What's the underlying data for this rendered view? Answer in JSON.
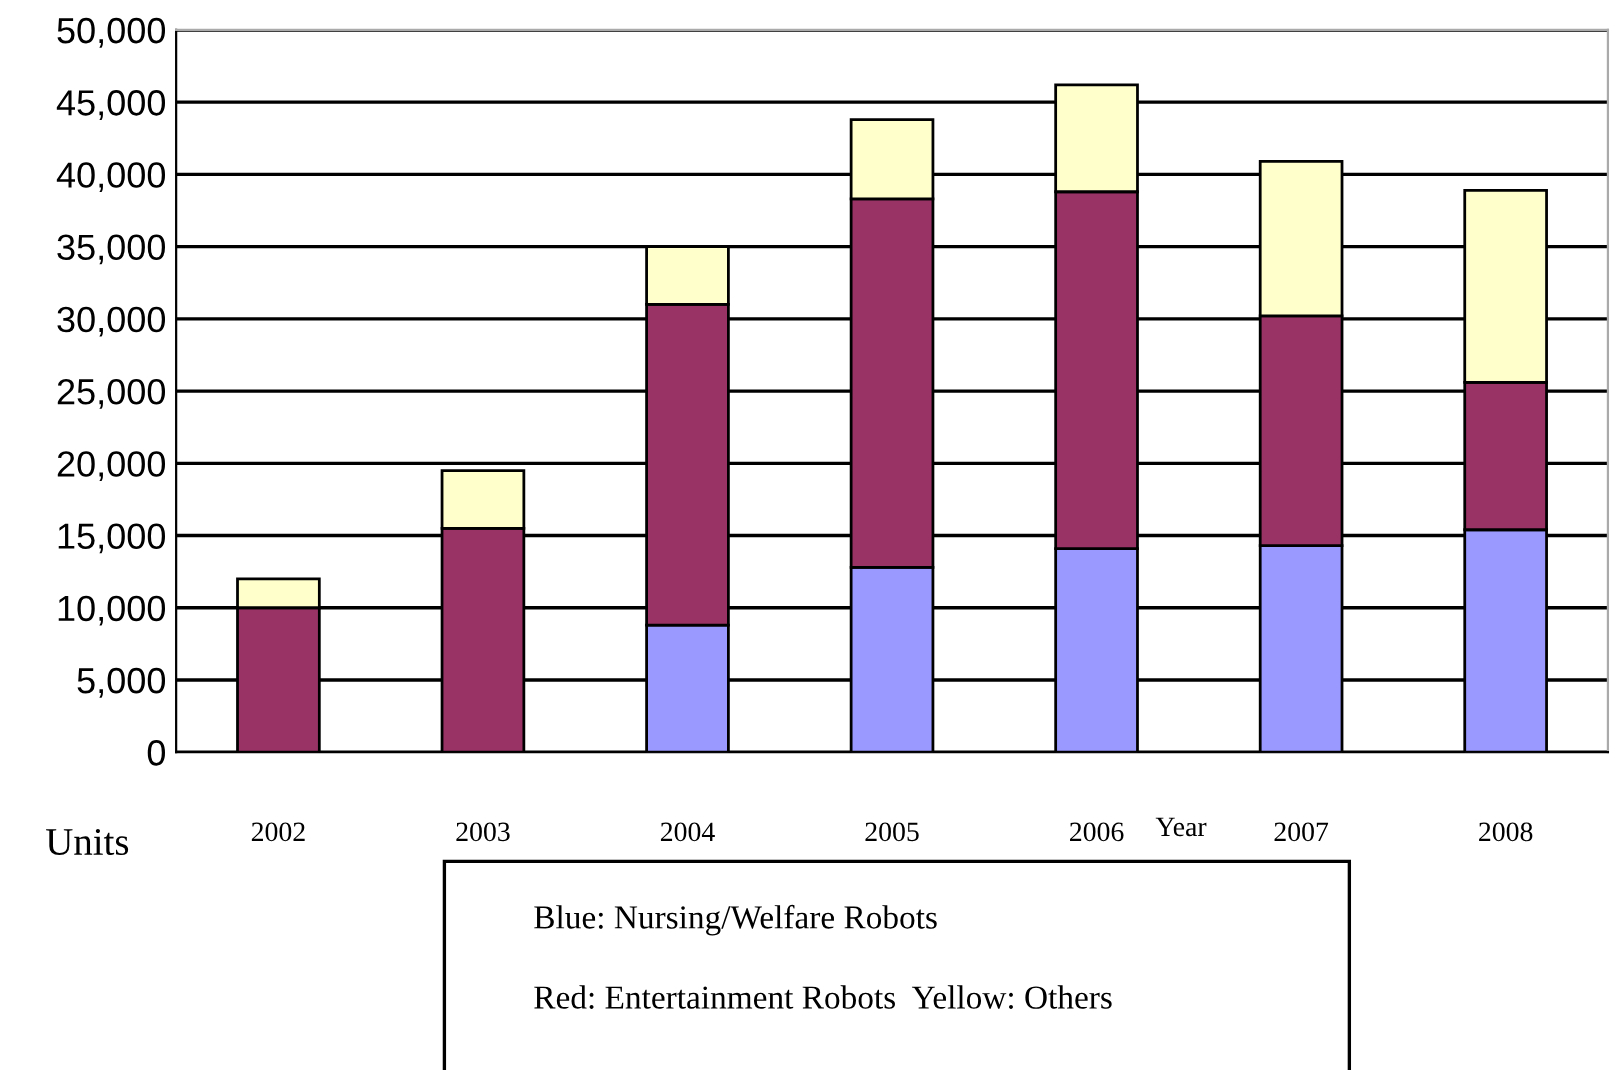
{
  "chart_data": {
    "type": "bar",
    "stacked": true,
    "categories": [
      "2002",
      "2003",
      "2004",
      "2005",
      "2006",
      "2007",
      "2008"
    ],
    "series": [
      {
        "color": "#9999ff",
        "values": [
          0,
          0,
          8800,
          12800,
          14100,
          14300,
          15400
        ]
      },
      {
        "color": "#993366",
        "values": [
          10000,
          15500,
          22200,
          25500,
          24700,
          15900,
          10200
        ]
      },
      {
        "color": "#ffffcc",
        "values": [
          2000,
          4000,
          4000,
          5500,
          7400,
          10700,
          13300
        ]
      }
    ],
    "xlabel": "Year",
    "ylabel": "Units",
    "ylim": [
      0,
      50000
    ],
    "yticks": [
      0,
      {
        "value": 5000,
        "label": "5,000"
      },
      {
        "value": 10000,
        "label": "10,000"
      },
      {
        "value": 15000,
        "label": "15,000"
      },
      {
        "value": 20000,
        "label": "20,000"
      },
      {
        "value": 25000,
        "label": "25,000"
      },
      {
        "value": 30000,
        "label": "30,000"
      },
      {
        "value": 35000,
        "label": "35,000"
      },
      {
        "value": 40000,
        "label": "40,000"
      },
      {
        "value": 45000,
        "label": "45,000"
      },
      {
        "value": 50000,
        "label": "50,000"
      }
    ],
    "grid": "y",
    "legend": false,
    "annotations": [
      "Blue: Nursing/Welfare Robots",
      "Red: Entertainment Robots  Yellow: Others"
    ]
  }
}
